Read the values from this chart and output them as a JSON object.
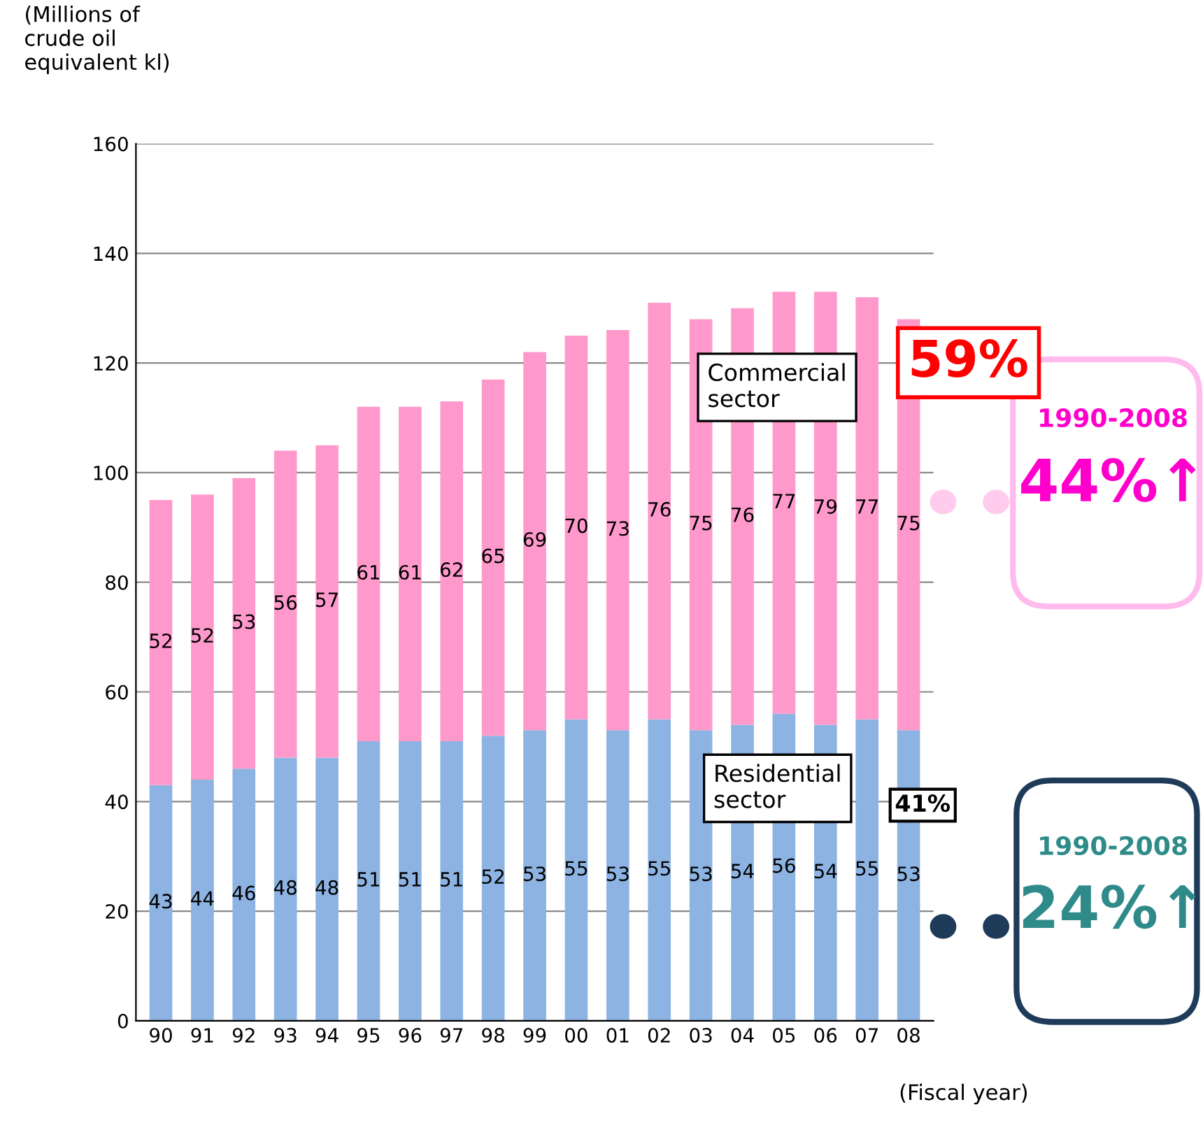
{
  "chart_data": {
    "type": "bar",
    "stacked": true,
    "ylabel": "(Millions of\ncrude oil\nequivalent kl)",
    "xlabel": "(Fiscal year)",
    "categories": [
      "90",
      "91",
      "92",
      "93",
      "94",
      "95",
      "96",
      "97",
      "98",
      "99",
      "00",
      "01",
      "02",
      "03",
      "04",
      "05",
      "06",
      "07",
      "08"
    ],
    "series": [
      {
        "color": "#8db3e2",
        "values": [
          43,
          44,
          46,
          48,
          48,
          51,
          51,
          51,
          52,
          53,
          55,
          53,
          55,
          53,
          54,
          56,
          54,
          55,
          53
        ]
      },
      {
        "color": "#ff99cc",
        "values": [
          52,
          52,
          53,
          56,
          57,
          61,
          61,
          62,
          65,
          69,
          70,
          73,
          76,
          75,
          76,
          77,
          79,
          77,
          75
        ]
      }
    ],
    "ylim": [
      0,
      160
    ],
    "yticks": [
      0,
      20,
      40,
      60,
      80,
      100,
      120,
      140,
      160
    ],
    "grid": "y",
    "legend": false,
    "data_labels": true,
    "annotations": [
      "Commercial\nsector",
      "59%",
      "Residential\nsector",
      "41%",
      "1990-2008",
      "44%↑",
      "1990-2008",
      "24%↑"
    ]
  }
}
